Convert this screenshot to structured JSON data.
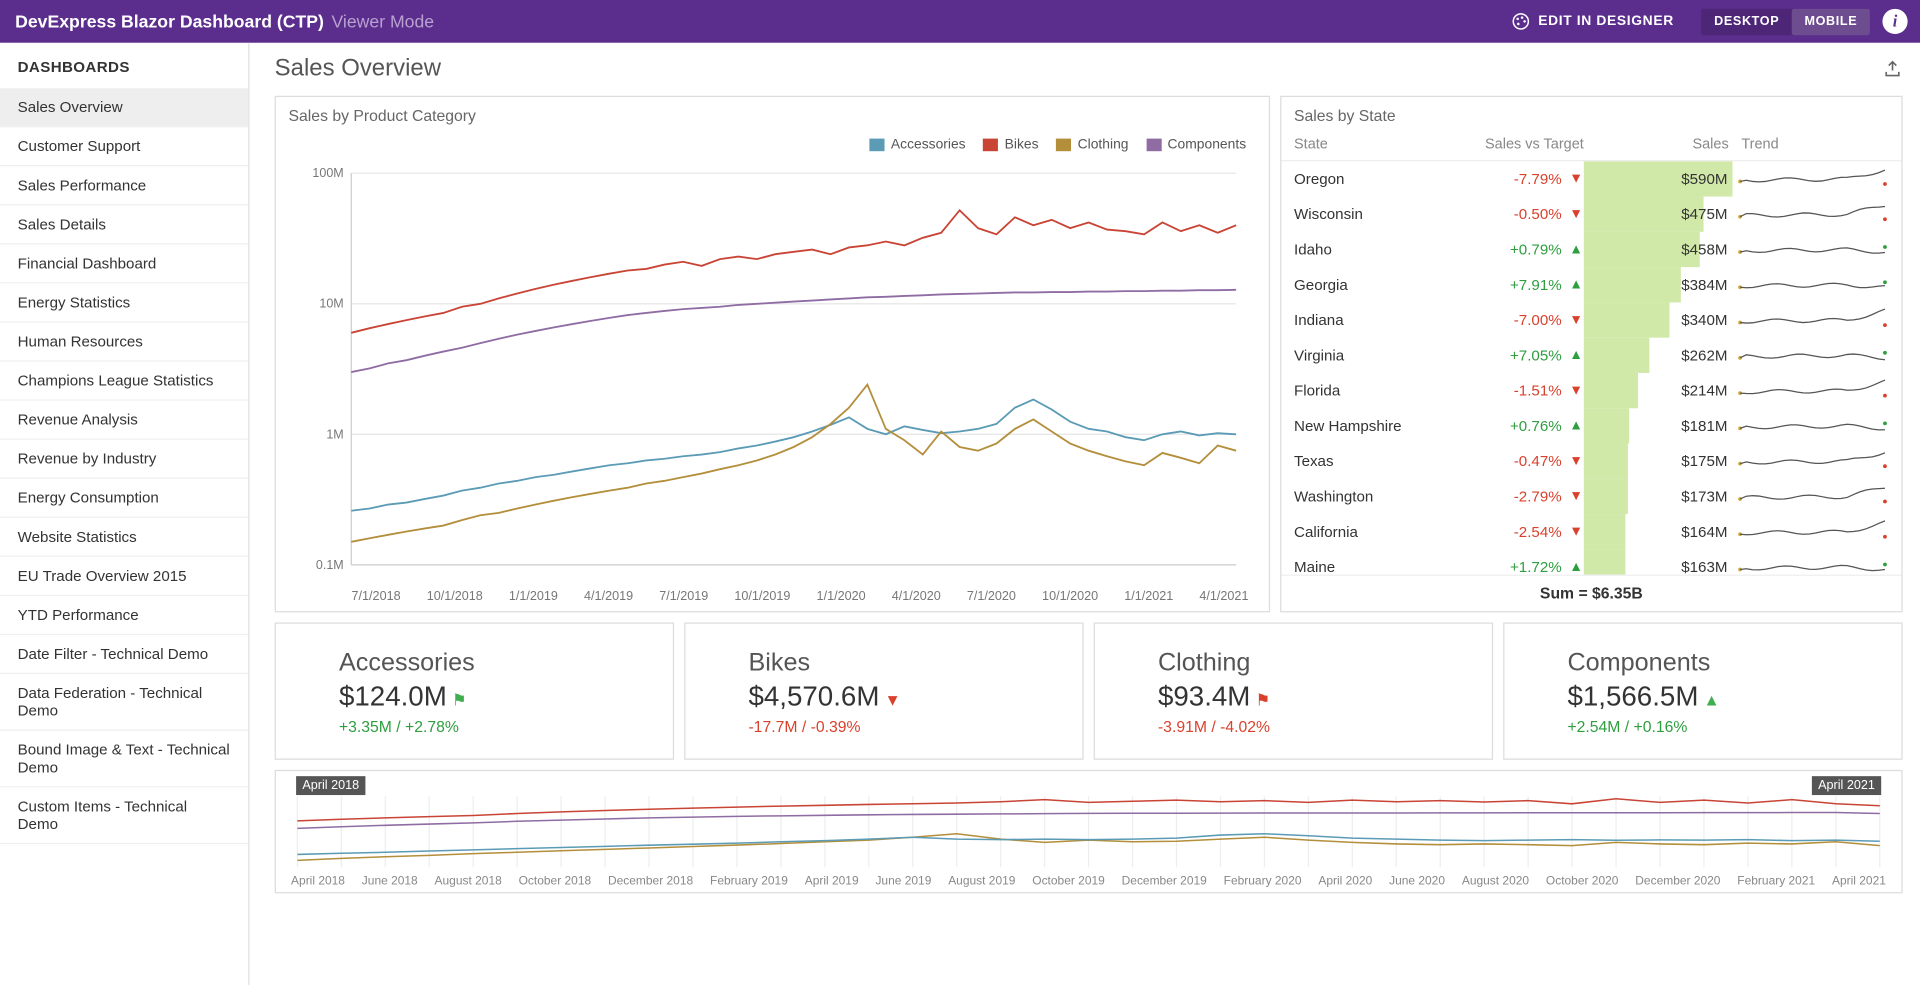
{
  "header": {
    "title": "DevExpress Blazor Dashboard (CTP)",
    "subtitle": "Viewer Mode",
    "edit_label": "EDIT IN DESIGNER",
    "toggle": {
      "desktop": "DESKTOP",
      "mobile": "MOBILE",
      "active": "mobile"
    },
    "bar_color": "#5b2d8c"
  },
  "sidebar": {
    "header": "DASHBOARDS",
    "items": [
      "Sales Overview",
      "Customer Support",
      "Sales Performance",
      "Sales Details",
      "Financial Dashboard",
      "Energy Statistics",
      "Human Resources",
      "Champions League Statistics",
      "Revenue Analysis",
      "Revenue by Industry",
      "Energy Consumption",
      "Website Statistics",
      "EU Trade Overview 2015",
      "YTD Performance",
      "Date Filter - Technical Demo",
      "Data Federation - Technical Demo",
      "Bound Image & Text - Technical Demo",
      "Custom Items - Technical Demo"
    ],
    "active_index": 0
  },
  "page": {
    "title": "Sales Overview"
  },
  "chart": {
    "title": "Sales by Product Category",
    "type": "line",
    "yscale": "log",
    "y_ticks": [
      "100M",
      "10M",
      "1M",
      "0.1M"
    ],
    "x_ticks": [
      "7/1/2018",
      "10/1/2018",
      "1/1/2019",
      "4/1/2019",
      "7/1/2019",
      "10/1/2019",
      "1/1/2020",
      "4/1/2020",
      "7/1/2020",
      "10/1/2020",
      "1/1/2021",
      "4/1/2021"
    ],
    "grid_color": "#e8e8e8",
    "series": [
      {
        "name": "Accessories",
        "color": "#5b9bb5",
        "y": [
          0.26,
          0.27,
          0.29,
          0.3,
          0.32,
          0.34,
          0.37,
          0.39,
          0.42,
          0.44,
          0.47,
          0.49,
          0.52,
          0.55,
          0.58,
          0.6,
          0.63,
          0.65,
          0.68,
          0.7,
          0.73,
          0.78,
          0.82,
          0.88,
          0.95,
          1.05,
          1.18,
          1.35,
          1.1,
          1.0,
          1.15,
          1.08,
          1.02,
          1.05,
          1.1,
          1.2,
          1.6,
          1.85,
          1.55,
          1.25,
          1.1,
          1.05,
          0.95,
          0.9,
          1.0,
          1.05,
          0.98,
          1.02,
          1.0
        ]
      },
      {
        "name": "Bikes",
        "color": "#c94435",
        "y": [
          6.0,
          6.5,
          7.0,
          7.5,
          8.0,
          8.5,
          9.5,
          10.0,
          11.0,
          12.0,
          13.0,
          14.0,
          15.0,
          16.0,
          17.0,
          18.0,
          18.5,
          20.0,
          21.0,
          19.5,
          22.0,
          23.0,
          22.0,
          24.0,
          25.0,
          26.0,
          24.0,
          27.0,
          28.0,
          30.0,
          28.0,
          32.0,
          35.0,
          52.0,
          38.0,
          34.0,
          46.0,
          40.0,
          44.0,
          38.0,
          42.0,
          37.0,
          36.0,
          34.0,
          42.0,
          36.0,
          40.0,
          35.0,
          40.0
        ]
      },
      {
        "name": "Clothing",
        "color": "#b38e3b",
        "y": [
          0.15,
          0.16,
          0.17,
          0.18,
          0.19,
          0.2,
          0.22,
          0.24,
          0.25,
          0.27,
          0.29,
          0.31,
          0.33,
          0.35,
          0.37,
          0.39,
          0.42,
          0.44,
          0.47,
          0.5,
          0.54,
          0.58,
          0.63,
          0.7,
          0.8,
          0.95,
          1.2,
          1.6,
          2.4,
          1.1,
          0.9,
          0.7,
          1.05,
          0.8,
          0.75,
          0.85,
          1.1,
          1.3,
          1.05,
          0.85,
          0.75,
          0.68,
          0.62,
          0.58,
          0.72,
          0.66,
          0.6,
          0.82,
          0.75
        ]
      },
      {
        "name": "Components",
        "color": "#8f6ca3",
        "y": [
          3.0,
          3.2,
          3.5,
          3.7,
          4.0,
          4.3,
          4.6,
          5.0,
          5.4,
          5.8,
          6.2,
          6.6,
          7.0,
          7.4,
          7.8,
          8.2,
          8.5,
          8.8,
          9.1,
          9.3,
          9.5,
          9.8,
          10.0,
          10.2,
          10.4,
          10.6,
          10.8,
          11.0,
          11.2,
          11.3,
          11.5,
          11.6,
          11.8,
          11.9,
          12.0,
          12.1,
          12.2,
          12.2,
          12.3,
          12.3,
          12.4,
          12.4,
          12.5,
          12.5,
          12.6,
          12.6,
          12.7,
          12.7,
          12.8
        ]
      }
    ]
  },
  "state_table": {
    "title": "Sales by State",
    "columns": {
      "state": "State",
      "target": "Sales vs Target",
      "sales": "Sales",
      "trend": "Trend"
    },
    "bar_color": "#d0e8a8",
    "up_color": "#2e9e3f",
    "down_color": "#d9412d",
    "max_sales": 590,
    "rows": [
      {
        "state": "Oregon",
        "pct": "-7.79%",
        "dir": "down",
        "sales": "$590M",
        "sales_num": 590
      },
      {
        "state": "Wisconsin",
        "pct": "-0.50%",
        "dir": "down",
        "sales": "$475M",
        "sales_num": 475
      },
      {
        "state": "Idaho",
        "pct": "+0.79%",
        "dir": "up",
        "sales": "$458M",
        "sales_num": 458
      },
      {
        "state": "Georgia",
        "pct": "+7.91%",
        "dir": "up",
        "sales": "$384M",
        "sales_num": 384
      },
      {
        "state": "Indiana",
        "pct": "-7.00%",
        "dir": "down",
        "sales": "$340M",
        "sales_num": 340
      },
      {
        "state": "Virginia",
        "pct": "+7.05%",
        "dir": "up",
        "sales": "$262M",
        "sales_num": 262
      },
      {
        "state": "Florida",
        "pct": "-1.51%",
        "dir": "down",
        "sales": "$214M",
        "sales_num": 214
      },
      {
        "state": "New Hampshire",
        "pct": "+0.76%",
        "dir": "up",
        "sales": "$181M",
        "sales_num": 181
      },
      {
        "state": "Texas",
        "pct": "-0.47%",
        "dir": "down",
        "sales": "$175M",
        "sales_num": 175
      },
      {
        "state": "Washington",
        "pct": "-2.79%",
        "dir": "down",
        "sales": "$173M",
        "sales_num": 173
      },
      {
        "state": "California",
        "pct": "-2.54%",
        "dir": "down",
        "sales": "$164M",
        "sales_num": 164
      },
      {
        "state": "Maine",
        "pct": "+1.72%",
        "dir": "up",
        "sales": "$163M",
        "sales_num": 163
      }
    ],
    "footer": "Sum = $6.35B"
  },
  "kpis": [
    {
      "title": "Accessories",
      "value": "$124.0M",
      "indicator": "flag-up",
      "delta": "+3.35M / +2.78%",
      "delta_class": "up"
    },
    {
      "title": "Bikes",
      "value": "$4,570.6M",
      "indicator": "tri-down",
      "delta": "-17.7M / -0.39%",
      "delta_class": "down"
    },
    {
      "title": "Clothing",
      "value": "$93.4M",
      "indicator": "flag-down",
      "delta": "-3.91M / -4.02%",
      "delta_class": "down"
    },
    {
      "title": "Components",
      "value": "$1,566.5M",
      "indicator": "tri-up",
      "delta": "+2.54M / +0.16%",
      "delta_class": "up"
    }
  ],
  "timeline": {
    "left_label": "April 2018",
    "right_label": "April 2021",
    "x_ticks": [
      "April 2018",
      "June 2018",
      "August 2018",
      "October 2018",
      "December 2018",
      "February 2019",
      "April 2019",
      "June 2019",
      "August 2019",
      "October 2019",
      "December 2019",
      "February 2020",
      "April 2020",
      "June 2020",
      "August 2020",
      "October 2020",
      "December 2020",
      "February 2021",
      "April 2021"
    ],
    "series": [
      {
        "color": "#c94435",
        "y": [
          6,
          7,
          8,
          9,
          10,
          12,
          14,
          16,
          18,
          20,
          22,
          24,
          26,
          28,
          30,
          32,
          36,
          44,
          34,
          38,
          42,
          36,
          40,
          34,
          42,
          36,
          40,
          35,
          40,
          30,
          48,
          34,
          42,
          32,
          44,
          30,
          25
        ]
      },
      {
        "color": "#8f6ca3",
        "y": [
          3,
          3.5,
          4,
          4.5,
          5,
          5.8,
          6.5,
          7.2,
          8,
          8.6,
          9.2,
          9.7,
          10.2,
          10.6,
          11,
          11.3,
          11.6,
          11.9,
          12.1,
          12.2,
          12.3,
          12.4,
          12.5,
          12.5,
          12.6,
          12.6,
          12.7,
          12.7,
          12.8,
          12.8,
          12.9,
          12.9,
          13,
          13,
          13.1,
          13.1,
          12
        ]
      },
      {
        "color": "#b38e3b",
        "y": [
          0.15,
          0.18,
          0.21,
          0.24,
          0.28,
          0.32,
          0.37,
          0.42,
          0.48,
          0.55,
          0.63,
          0.72,
          0.85,
          1.0,
          1.3,
          1.8,
          1.1,
          0.8,
          1.0,
          0.85,
          0.9,
          1.1,
          1.3,
          1.0,
          0.8,
          0.7,
          0.65,
          0.7,
          0.65,
          0.6,
          0.8,
          0.7,
          0.65,
          0.75,
          0.7,
          0.85,
          0.6
        ]
      },
      {
        "color": "#5b9bb5",
        "y": [
          0.26,
          0.29,
          0.32,
          0.36,
          0.4,
          0.45,
          0.5,
          0.56,
          0.62,
          0.68,
          0.75,
          0.85,
          0.95,
          1.1,
          1.3,
          1.1,
          1.05,
          1.1,
          1.05,
          1.1,
          1.2,
          1.6,
          1.8,
          1.5,
          1.2,
          1.1,
          1.0,
          0.95,
          1.0,
          1.05,
          0.98,
          1.02,
          1.0,
          1.05,
          0.95,
          1.0,
          0.9
        ]
      }
    ]
  }
}
